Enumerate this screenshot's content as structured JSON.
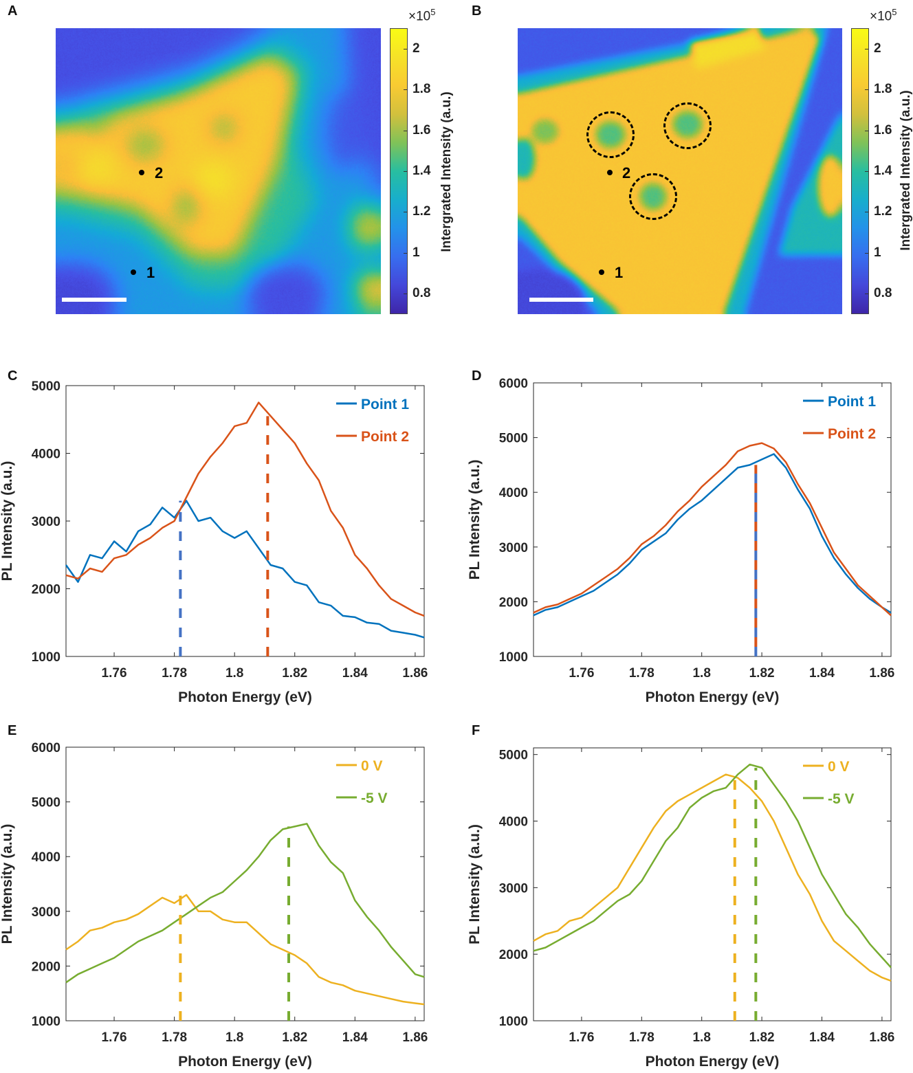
{
  "panels": {
    "A": {
      "letter": "A"
    },
    "B": {
      "letter": "B"
    },
    "C": {
      "letter": "C"
    },
    "D": {
      "letter": "D"
    },
    "E": {
      "letter": "E"
    },
    "F": {
      "letter": "F"
    }
  },
  "maps": [
    {
      "panel": "A",
      "colorbar": {
        "exponent_base": "×10",
        "exponent": "5",
        "label": "Intergrated Intensity (a.u.)",
        "ticks": [
          "2",
          "1.8",
          "1.6",
          "1.4",
          "1.2",
          "1",
          "0.8"
        ],
        "tick_values": [
          2,
          1.8,
          1.6,
          1.4,
          1.2,
          1.0,
          0.8
        ],
        "range": [
          0.7,
          2.1
        ],
        "colormap": "parula"
      },
      "points": [
        {
          "label": "2"
        },
        {
          "label": "1"
        }
      ],
      "scale_bar_color": "#ffffff"
    },
    {
      "panel": "B",
      "colorbar": {
        "exponent_base": "×10",
        "exponent": "5",
        "label": "Intergrated Intensity (a.u.)",
        "ticks": [
          "2",
          "1.8",
          "1.6",
          "1.4",
          "1.2",
          "1",
          "0.8"
        ],
        "tick_values": [
          2,
          1.8,
          1.6,
          1.4,
          1.2,
          1.0,
          0.8
        ],
        "range": [
          0.7,
          2.1
        ],
        "colormap": "parula"
      },
      "points": [
        {
          "label": "2"
        },
        {
          "label": "1"
        }
      ],
      "dashed_circles": 3,
      "scale_bar_color": "#ffffff"
    }
  ],
  "chart_data": [
    {
      "panel": "C",
      "type": "line",
      "xlabel": "Photon Energy (eV)",
      "ylabel": "PL Intensity (a.u.)",
      "xlim": [
        1.744,
        1.863
      ],
      "ylim": [
        1000,
        5000
      ],
      "xticks": [
        1.76,
        1.78,
        1.8,
        1.82,
        1.84,
        1.86
      ],
      "xtick_labels": [
        "1.76",
        "1.78",
        "1.8",
        "1.82",
        "1.84",
        "1.86"
      ],
      "yticks": [
        1000,
        2000,
        3000,
        4000,
        5000
      ],
      "ytick_labels": [
        "1000",
        "2000",
        "3000",
        "4000",
        "5000"
      ],
      "legend": "top-right",
      "x": [
        1.744,
        1.748,
        1.752,
        1.756,
        1.76,
        1.764,
        1.768,
        1.772,
        1.776,
        1.78,
        1.784,
        1.788,
        1.792,
        1.796,
        1.8,
        1.804,
        1.808,
        1.812,
        1.816,
        1.82,
        1.824,
        1.828,
        1.832,
        1.836,
        1.84,
        1.844,
        1.848,
        1.852,
        1.856,
        1.86,
        1.863
      ],
      "series": [
        {
          "name": "Point 1",
          "color": "#0072BD",
          "values": [
            2350,
            2100,
            2500,
            2450,
            2700,
            2550,
            2850,
            2950,
            3200,
            3050,
            3300,
            3000,
            3050,
            2850,
            2750,
            2850,
            2600,
            2350,
            2300,
            2100,
            2050,
            1800,
            1750,
            1600,
            1580,
            1500,
            1480,
            1380,
            1350,
            1320,
            1280
          ]
        },
        {
          "name": "Point 2",
          "color": "#D95319",
          "values": [
            2200,
            2150,
            2300,
            2250,
            2450,
            2500,
            2650,
            2750,
            2900,
            3000,
            3350,
            3700,
            3950,
            4150,
            4400,
            4450,
            4750,
            4550,
            4350,
            4150,
            3850,
            3600,
            3150,
            2900,
            2500,
            2300,
            2050,
            1850,
            1750,
            1650,
            1600
          ]
        }
      ],
      "vlines": [
        {
          "x": 1.782,
          "color": "#4472C4",
          "style": "dashed"
        },
        {
          "x": 1.811,
          "color": "#D95319",
          "style": "dashed"
        }
      ]
    },
    {
      "panel": "D",
      "type": "line",
      "xlabel": "Photon Energy (eV)",
      "ylabel": "PL Intensity (a.u.)",
      "xlim": [
        1.744,
        1.863
      ],
      "ylim": [
        1000,
        6000
      ],
      "xticks": [
        1.76,
        1.78,
        1.8,
        1.82,
        1.84,
        1.86
      ],
      "xtick_labels": [
        "1.76",
        "1.78",
        "1.8",
        "1.82",
        "1.84",
        "1.86"
      ],
      "yticks": [
        1000,
        2000,
        3000,
        4000,
        5000,
        6000
      ],
      "ytick_labels": [
        "1000",
        "2000",
        "3000",
        "4000",
        "5000",
        "6000"
      ],
      "legend": "top-right",
      "x": [
        1.744,
        1.748,
        1.752,
        1.756,
        1.76,
        1.764,
        1.768,
        1.772,
        1.776,
        1.78,
        1.784,
        1.788,
        1.792,
        1.796,
        1.8,
        1.804,
        1.808,
        1.812,
        1.816,
        1.82,
        1.824,
        1.828,
        1.832,
        1.836,
        1.84,
        1.844,
        1.848,
        1.852,
        1.856,
        1.86,
        1.863
      ],
      "series": [
        {
          "name": "Point 1",
          "color": "#0072BD",
          "values": [
            1750,
            1850,
            1900,
            2000,
            2100,
            2200,
            2350,
            2500,
            2700,
            2950,
            3100,
            3250,
            3500,
            3700,
            3850,
            4050,
            4250,
            4450,
            4500,
            4600,
            4700,
            4450,
            4050,
            3700,
            3200,
            2800,
            2500,
            2250,
            2050,
            1900,
            1800
          ]
        },
        {
          "name": "Point 2",
          "color": "#D95319",
          "values": [
            1800,
            1900,
            1950,
            2050,
            2150,
            2300,
            2450,
            2600,
            2800,
            3050,
            3200,
            3400,
            3650,
            3850,
            4100,
            4300,
            4500,
            4750,
            4850,
            4900,
            4800,
            4550,
            4150,
            3800,
            3350,
            2900,
            2600,
            2300,
            2100,
            1900,
            1750
          ]
        }
      ],
      "vlines": [
        {
          "x": 1.818,
          "color": "#4472C4",
          "style": "dashed"
        },
        {
          "x": 1.818,
          "color": "#D95319",
          "style": "dashed"
        }
      ]
    },
    {
      "panel": "E",
      "type": "line",
      "xlabel": "Photon Energy (eV)",
      "ylabel": "PL Intensity (a.u.)",
      "xlim": [
        1.744,
        1.863
      ],
      "ylim": [
        1000,
        6000
      ],
      "xticks": [
        1.76,
        1.78,
        1.8,
        1.82,
        1.84,
        1.86
      ],
      "xtick_labels": [
        "1.76",
        "1.78",
        "1.8",
        "1.82",
        "1.84",
        "1.86"
      ],
      "yticks": [
        1000,
        2000,
        3000,
        4000,
        5000,
        6000
      ],
      "ytick_labels": [
        "1000",
        "2000",
        "3000",
        "4000",
        "5000",
        "6000"
      ],
      "legend": "top-right",
      "x": [
        1.744,
        1.748,
        1.752,
        1.756,
        1.76,
        1.764,
        1.768,
        1.772,
        1.776,
        1.78,
        1.784,
        1.788,
        1.792,
        1.796,
        1.8,
        1.804,
        1.808,
        1.812,
        1.816,
        1.82,
        1.824,
        1.828,
        1.832,
        1.836,
        1.84,
        1.844,
        1.848,
        1.852,
        1.856,
        1.86,
        1.863
      ],
      "series": [
        {
          "name": "0 V",
          "color": "#EDB120",
          "values": [
            2300,
            2450,
            2650,
            2700,
            2800,
            2850,
            2950,
            3100,
            3250,
            3150,
            3300,
            3000,
            3000,
            2850,
            2800,
            2800,
            2600,
            2400,
            2300,
            2200,
            2050,
            1800,
            1700,
            1650,
            1550,
            1500,
            1450,
            1400,
            1350,
            1320,
            1300
          ]
        },
        {
          "name": "-5 V",
          "color": "#77AC30",
          "values": [
            1700,
            1850,
            1950,
            2050,
            2150,
            2300,
            2450,
            2550,
            2650,
            2800,
            2950,
            3100,
            3250,
            3350,
            3550,
            3750,
            4000,
            4300,
            4500,
            4550,
            4600,
            4200,
            3900,
            3700,
            3200,
            2900,
            2650,
            2350,
            2100,
            1850,
            1800
          ]
        }
      ],
      "vlines": [
        {
          "x": 1.782,
          "color": "#EDB120",
          "style": "dashed"
        },
        {
          "x": 1.818,
          "color": "#77AC30",
          "style": "dashed"
        }
      ]
    },
    {
      "panel": "F",
      "type": "line",
      "xlabel": "Photon Energy (eV)",
      "ylabel": "PL Intensity (a.u.)",
      "xlim": [
        1.744,
        1.863
      ],
      "ylim": [
        1000,
        5100
      ],
      "xticks": [
        1.76,
        1.78,
        1.8,
        1.82,
        1.84,
        1.86
      ],
      "xtick_labels": [
        "1.76",
        "1.78",
        "1.8",
        "1.82",
        "1.84",
        "1.86"
      ],
      "yticks": [
        1000,
        2000,
        3000,
        4000,
        5000
      ],
      "ytick_labels": [
        "1000",
        "2000",
        "3000",
        "4000",
        "5000"
      ],
      "legend": "top-right",
      "x": [
        1.744,
        1.748,
        1.752,
        1.756,
        1.76,
        1.764,
        1.768,
        1.772,
        1.776,
        1.78,
        1.784,
        1.788,
        1.792,
        1.796,
        1.8,
        1.804,
        1.808,
        1.812,
        1.816,
        1.82,
        1.824,
        1.828,
        1.832,
        1.836,
        1.84,
        1.844,
        1.848,
        1.852,
        1.856,
        1.86,
        1.863
      ],
      "series": [
        {
          "name": "0 V",
          "color": "#EDB120",
          "values": [
            2200,
            2300,
            2350,
            2500,
            2550,
            2700,
            2850,
            3000,
            3300,
            3600,
            3900,
            4150,
            4300,
            4400,
            4500,
            4600,
            4700,
            4650,
            4500,
            4300,
            4000,
            3600,
            3200,
            2900,
            2500,
            2200,
            2050,
            1900,
            1750,
            1650,
            1600
          ]
        },
        {
          "name": "-5 V",
          "color": "#77AC30",
          "values": [
            2050,
            2100,
            2200,
            2300,
            2400,
            2500,
            2650,
            2800,
            2900,
            3100,
            3400,
            3700,
            3900,
            4200,
            4350,
            4450,
            4500,
            4700,
            4850,
            4800,
            4550,
            4300,
            4000,
            3600,
            3200,
            2900,
            2600,
            2400,
            2150,
            1950,
            1800
          ]
        }
      ],
      "vlines": [
        {
          "x": 1.811,
          "color": "#EDB120",
          "style": "dashed"
        },
        {
          "x": 1.818,
          "color": "#77AC30",
          "style": "dashed"
        }
      ]
    }
  ]
}
